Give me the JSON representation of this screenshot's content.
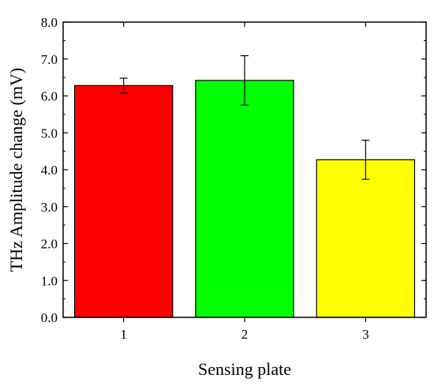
{
  "chart_data": {
    "type": "bar",
    "categories": [
      "1",
      "2",
      "3"
    ],
    "values": [
      6.28,
      6.42,
      4.27
    ],
    "errors": [
      0.2,
      0.67,
      0.53
    ],
    "bar_colors": [
      "#ff0000",
      "#00ff00",
      "#ffff00"
    ],
    "xlabel": "Sensing plate",
    "ylabel": "THz Amplitude change (mV)",
    "ylim": [
      0.0,
      8.0
    ],
    "yticks": [
      "0.0",
      "1.0",
      "2.0",
      "3.0",
      "4.0",
      "5.0",
      "6.0",
      "7.0",
      "8.0"
    ],
    "grid": false
  }
}
